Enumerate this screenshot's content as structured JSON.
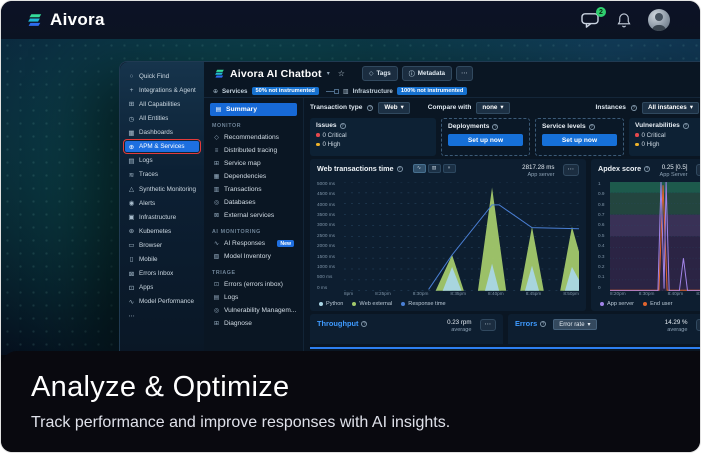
{
  "topbar": {
    "brand": "Aivora",
    "chat_badge": "2"
  },
  "icons": {
    "search": "○",
    "plus": "+",
    "grid": "⊞",
    "clock": "◷",
    "dashboard": "▦",
    "apm": "⊕",
    "logs": "▤",
    "traces": "≋",
    "synthetic": "△",
    "alerts": "◉",
    "infrastructure": "▣",
    "kubernetes": "⊛",
    "browser": "▭",
    "mobile": "▯",
    "errors-inbox": "⊠",
    "apps": "⊡",
    "model": "∿",
    "more": "⋯",
    "caret": "▾",
    "star": "☆",
    "tag": "◇",
    "info": "ⓘ",
    "help": "?",
    "globe": "⊕",
    "bars": "▥",
    "summary": "▤",
    "recommendations": "◇",
    "tracing": "≡",
    "service-map": "⊞",
    "dependencies": "▦",
    "transactions": "▥",
    "databases": "◎",
    "external": "⊠",
    "ai": "∿",
    "model-inventory": "▧",
    "errors": "⊡",
    "vulnerability": "◎",
    "diagnose": "⊞",
    "line-chart": "∿",
    "bar-chart": "▥",
    "compare": "×"
  },
  "hero_sidebar": {
    "items": [
      {
        "icon": "search",
        "label": "Quick Find"
      },
      {
        "icon": "plus",
        "label": "Integrations & Agents"
      },
      {
        "icon": "grid",
        "label": "All Capabilities"
      },
      {
        "icon": "clock",
        "label": "All Entities"
      },
      {
        "icon": "dashboard",
        "label": "Dashboards"
      },
      {
        "icon": "apm",
        "label": "APM & Services",
        "active": true
      },
      {
        "icon": "logs",
        "label": "Logs"
      },
      {
        "icon": "traces",
        "label": "Traces"
      },
      {
        "icon": "synthetic",
        "label": "Synthetic Monitoring"
      },
      {
        "icon": "alerts",
        "label": "Alerts"
      },
      {
        "icon": "infrastructure",
        "label": "Infrastructure"
      },
      {
        "icon": "kubernetes",
        "label": "Kubernetes"
      },
      {
        "icon": "browser",
        "label": "Browser"
      },
      {
        "icon": "mobile",
        "label": "Mobile"
      },
      {
        "icon": "errors-inbox",
        "label": "Errors Inbox"
      },
      {
        "icon": "apps",
        "label": "Apps"
      },
      {
        "icon": "model",
        "label": "Model Performance"
      },
      {
        "icon": "more",
        "label": ""
      }
    ]
  },
  "app": {
    "title": "Aivora AI Chatbot",
    "toolbar": {
      "tags": "Tags",
      "metadata": "Metadata"
    },
    "status": {
      "services_label": "Services",
      "services_badge": "50% not instrumented",
      "infrastructure_label": "Infrastructure",
      "infrastructure_badge": "100% not instrumented"
    },
    "nav": {
      "summary": "Summary",
      "sections": [
        {
          "title": "MONITOR",
          "items": [
            {
              "icon": "recommendations",
              "label": "Recommendations"
            },
            {
              "icon": "tracing",
              "label": "Distributed tracing"
            },
            {
              "icon": "service-map",
              "label": "Service map"
            },
            {
              "icon": "dependencies",
              "label": "Dependencies"
            },
            {
              "icon": "transactions",
              "label": "Transactions"
            },
            {
              "icon": "databases",
              "label": "Databases"
            },
            {
              "icon": "external",
              "label": "External services"
            }
          ]
        },
        {
          "title": "AI MONITORING",
          "items": [
            {
              "icon": "ai",
              "label": "AI Responses",
              "badge": "New"
            },
            {
              "icon": "model-inventory",
              "label": "Model Inventory"
            }
          ]
        },
        {
          "title": "TRIAGE",
          "items": [
            {
              "icon": "errors",
              "label": "Errors (errors inbox)"
            },
            {
              "icon": "logs",
              "label": "Logs"
            },
            {
              "icon": "vulnerability",
              "label": "Vulnerability Managem..."
            },
            {
              "icon": "diagnose",
              "label": "Diagnose"
            }
          ]
        }
      ]
    },
    "filters": {
      "transaction_type_label": "Transaction type",
      "transaction_type_value": "Web",
      "compare_label": "Compare with",
      "compare_value": "none",
      "instances_label": "Instances",
      "instances_value": "All instances"
    },
    "cards": {
      "issues": {
        "title": "Issues",
        "critical": "0 Critical",
        "high": "0 High"
      },
      "deployments": {
        "title": "Deployments",
        "cta": "Set up now"
      },
      "service_levels": {
        "title": "Service levels",
        "cta": "Set up now"
      },
      "vulnerabilities": {
        "title": "Vulnerabilities",
        "critical": "0 Critical",
        "high": "0 High"
      }
    },
    "panels": {
      "web_transactions": {
        "title": "Web transactions time",
        "value": "2817.28 ms",
        "value_label": "App server"
      },
      "apdex": {
        "title": "Apdex score",
        "value": "0.25 [0.5]",
        "value_label": "App Server"
      },
      "throughput": {
        "title": "Throughput",
        "value": "0.23 rpm",
        "value_label": "average"
      },
      "errors": {
        "title": "Errors",
        "dropdown": "Error rate",
        "value": "14.29 %",
        "value_label": "average"
      }
    }
  },
  "chart_data": [
    {
      "id": "web_transactions",
      "type": "area",
      "title": "Web transactions time",
      "ylabel": "response time (ms)",
      "ylim": [
        0,
        5000
      ],
      "grid": true,
      "legend_position": "bottom",
      "y_ticks": [
        "5000 ms",
        "4500 ms",
        "4000 ms",
        "3500 ms",
        "3000 ms",
        "2500 ms",
        "2000 ms",
        "1500 ms",
        "1000 ms",
        "500 ms",
        "0 ms"
      ],
      "x_ticks": [
        "8pm",
        "8:25pm",
        "8:30pm",
        "8:35pm",
        "8:40pm",
        "8:45pm",
        "8:50pm"
      ],
      "series": [
        {
          "name": "Web external",
          "color": "#a3c96b",
          "kind": "area",
          "points": [
            [
              0,
              0
            ],
            [
              39,
              0
            ],
            [
              46,
              1650
            ],
            [
              51,
              0
            ],
            [
              57,
              0
            ],
            [
              63,
              4750
            ],
            [
              69,
              0
            ],
            [
              75,
              0
            ],
            [
              80,
              2950
            ],
            [
              85,
              0
            ],
            [
              92,
              0
            ],
            [
              97,
              2950
            ],
            [
              100,
              1800
            ],
            [
              100,
              0
            ]
          ]
        },
        {
          "name": "Python",
          "color": "#a9d6e5",
          "kind": "area",
          "points": [
            [
              0,
              0
            ],
            [
              42,
              0
            ],
            [
              46,
              1100
            ],
            [
              50,
              0
            ],
            [
              60,
              0
            ],
            [
              63,
              1250
            ],
            [
              66,
              0
            ],
            [
              77,
              0
            ],
            [
              80,
              1150
            ],
            [
              83,
              0
            ],
            [
              94,
              0
            ],
            [
              97,
              1100
            ],
            [
              100,
              500
            ],
            [
              100,
              0
            ]
          ]
        },
        {
          "name": "Response time",
          "color": "#4a7fd4",
          "kind": "line",
          "points": [
            [
              36,
              60
            ],
            [
              46,
              1650
            ],
            [
              63,
              3950
            ],
            [
              66,
              3950
            ],
            [
              80,
              2900
            ],
            [
              100,
              2850
            ]
          ]
        }
      ],
      "legend": [
        {
          "label": "Python",
          "color": "#a9d6e5"
        },
        {
          "label": "Web external",
          "color": "#a3c96b"
        },
        {
          "label": "Response time",
          "color": "#4a7fd4"
        }
      ]
    },
    {
      "id": "apdex",
      "type": "line",
      "title": "Apdex score",
      "ylabel": "apdex",
      "ylim": [
        0,
        1
      ],
      "grid": true,
      "legend_position": "bottom",
      "y_ticks": [
        "1",
        "0.9",
        "0.8",
        "0.7",
        "0.6",
        "0.5",
        "0.4",
        "0.3",
        "0.2",
        "0.1",
        "0"
      ],
      "x_ticks": [
        "8:20pm",
        "8:30pm",
        "8:40pm",
        "8:50pm"
      ],
      "bands": [
        {
          "from": 0.9,
          "to": 1,
          "color": "#1d5a4c"
        },
        {
          "from": 0.7,
          "to": 0.9,
          "color": "#23453f"
        },
        {
          "from": 0.5,
          "to": 0.7,
          "color": "#393156"
        },
        {
          "from": 0,
          "to": 0.5,
          "color": "#2b2444"
        }
      ],
      "series": [
        {
          "name": "End user",
          "color": "#e0642e",
          "kind": "line",
          "points": [
            [
              0,
              0.005
            ],
            [
              48,
              0.005
            ],
            [
              52,
              0.97
            ],
            [
              56,
              0.005
            ],
            [
              100,
              0.005
            ]
          ]
        },
        {
          "name": "App server",
          "color": "#a184e8",
          "kind": "line",
          "points": [
            [
              0,
              0
            ],
            [
              47,
              0
            ],
            [
              50,
              1
            ],
            [
              53,
              0.02
            ],
            [
              55,
              1
            ],
            [
              58,
              0
            ],
            [
              68,
              0
            ],
            [
              72,
              0.3
            ],
            [
              76,
              0
            ],
            [
              100,
              0
            ]
          ]
        }
      ],
      "legend": [
        {
          "label": "App server",
          "color": "#a184e8"
        },
        {
          "label": "End user",
          "color": "#e0642e"
        }
      ]
    }
  ],
  "banner": {
    "title": "Analyze & Optimize",
    "subtitle": "Track performance and improve responses with AI insights."
  }
}
